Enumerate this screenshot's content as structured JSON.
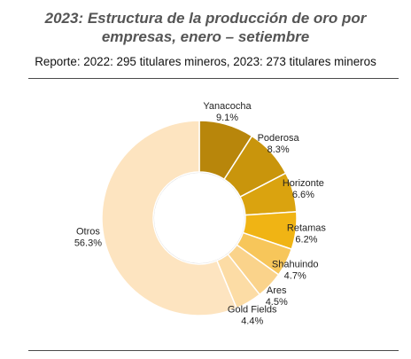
{
  "header": {
    "title_line1": "2023: Estructura de la producción de oro por",
    "title_line2": "empresas, enero – setiembre",
    "subtitle": "Reporte: 2022: 295 titulares mineros, 2023: 273 titulares mineros"
  },
  "chart_data": {
    "type": "donut",
    "title": "2023: Estructura de la producción de oro por empresas, enero – setiembre",
    "subtitle": "Reporte: 2022: 295 titulares mineros, 2023: 273 titulares mineros",
    "unit": "%",
    "slices": [
      {
        "name": "Yanacocha",
        "value": 9.1,
        "label": "9.1%",
        "color": "#b8860b"
      },
      {
        "name": "Poderosa",
        "value": 8.3,
        "label": "8.3%",
        "color": "#c9950c"
      },
      {
        "name": "Horizonte",
        "value": 6.6,
        "label": "6.6%",
        "color": "#daa30f"
      },
      {
        "name": "Retamas",
        "value": 6.2,
        "label": "6.2%",
        "color": "#f0b414"
      },
      {
        "name": "Shahuindo",
        "value": 4.7,
        "label": "4.7%",
        "color": "#f7c65a"
      },
      {
        "name": "Ares",
        "value": 4.5,
        "label": "4.5%",
        "color": "#fad38b"
      },
      {
        "name": "Gold Fields",
        "value": 4.4,
        "label": "4.4%",
        "color": "#fcdca5"
      },
      {
        "name": "Otros",
        "value": 56.3,
        "label": "56.3%",
        "color": "#fde4c0"
      }
    ]
  }
}
